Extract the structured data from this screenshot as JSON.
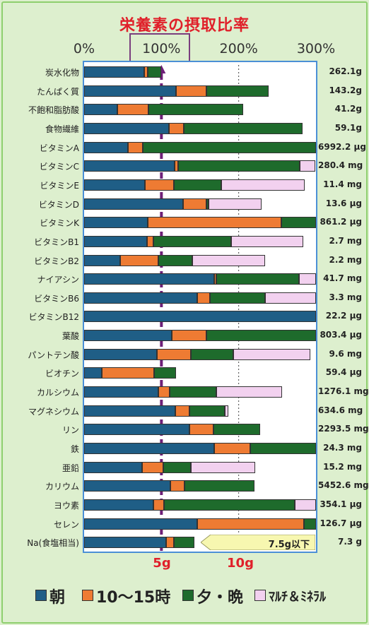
{
  "page": {
    "title": "栄養素の摂取比率"
  },
  "legend": [
    {
      "label": "朝",
      "color": "#1f5e86"
    },
    {
      "label": "10～15時",
      "color": "#ee7b33"
    },
    {
      "label": "夕・晩",
      "color": "#1e6b2c"
    },
    {
      "label": "ﾏﾙﾁ＆ﾐﾈﾗﾙ",
      "color": "#f2d1ef"
    }
  ],
  "annotations": {
    "salt_goal": "7.5g以下",
    "gram_5": "5g",
    "gram_10": "10g"
  },
  "chart_data": {
    "type": "bar",
    "orientation": "horizontal",
    "stacked": true,
    "title": "栄養素の摂取比率",
    "xlim": [
      0,
      300
    ],
    "x_ticks": [
      "0%",
      "100%",
      "200%",
      "300%"
    ],
    "reference_lines": [
      100,
      200
    ],
    "series": [
      {
        "name": "朝",
        "color": "#1f5e86",
        "values": [
          78,
          119,
          43,
          110,
          57,
          117,
          79,
          128,
          82,
          81,
          47,
          168,
          146,
          300,
          113,
          94,
          23,
          96,
          118,
          136,
          168,
          75,
          112,
          90,
          146,
          106
        ]
      },
      {
        "name": "10～15時",
        "color": "#ee7b33",
        "values": [
          4,
          39,
          40,
          19,
          19,
          5,
          37,
          30,
          173,
          9,
          49,
          3,
          17,
          0,
          45,
          44,
          68,
          15,
          18,
          31,
          47,
          27,
          18,
          13,
          138,
          10
        ]
      },
      {
        "name": "夕・晩",
        "color": "#1e6b2c",
        "values": [
          18,
          81,
          123,
          154,
          224,
          157,
          61,
          3,
          45,
          100,
          44,
          107,
          71,
          0,
          142,
          55,
          28,
          60,
          46,
          61,
          85,
          36,
          90,
          170,
          18,
          27
        ]
      },
      {
        "name": "ﾏﾙﾁ＆ﾐﾈﾗﾙ",
        "color": "#f2d1ef",
        "values": [
          0,
          0,
          0,
          0,
          0,
          20,
          108,
          69,
          0,
          94,
          94,
          22,
          67,
          0,
          0,
          100,
          0,
          85,
          5,
          0,
          0,
          83,
          0,
          27,
          0,
          0
        ]
      }
    ],
    "categories": [
      "炭水化物",
      "たんぱく質",
      "不飽和脂肪酸",
      "食物繊維",
      "ビタミンA",
      "ビタミンC",
      "ビタミンE",
      "ビタミンD",
      "ビタミンK",
      "ビタミンB1",
      "ビタミンB2",
      "ナイアシン",
      "ビタミンB6",
      "ビタミンB12",
      "葉酸",
      "パントテン酸",
      "ビオチン",
      "カルシウム",
      "マグネシウム",
      "リン",
      "鉄",
      "亜鉛",
      "カリウム",
      "ヨウ素",
      "セレン",
      "Na(食塩相当)"
    ],
    "amounts": [
      "262.1g",
      "143.2g",
      "41.2g",
      "59.1g",
      "6992.2 μg",
      "280.4 mg",
      "11.4 mg",
      "13.6 μg",
      "861.2 μg",
      "2.7 mg",
      "2.2 mg",
      "41.7 mg",
      "3.3 mg",
      "22.2 μg",
      "803.4 μg",
      "9.6 mg",
      "59.4 μg",
      "1276.1 mg",
      "634.6 mg",
      "2293.5 mg",
      "24.3 mg",
      "15.2 mg",
      "5452.6 mg",
      "354.1 μg",
      "126.7 μg",
      "7.3 g"
    ]
  }
}
